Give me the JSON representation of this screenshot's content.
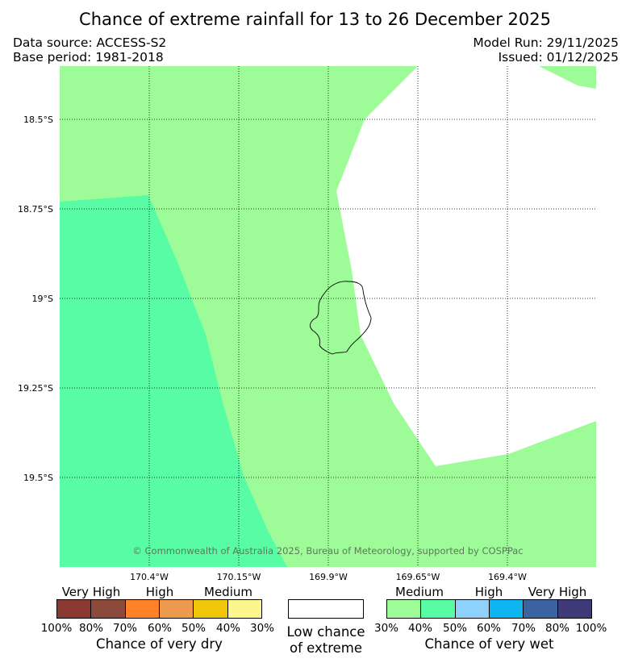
{
  "title": "Chance of extreme rainfall for 13 to 26 December 2025",
  "meta": {
    "data_source": "Data source: ACCESS-S2",
    "base_period": "Base period: 1981-2018",
    "model_run": "Model Run: 29/11/2025",
    "issued": "Issued: 01/12/2025"
  },
  "map": {
    "lat_labels": [
      "18.5°S",
      "18.75°S",
      "19°S",
      "19.25°S",
      "19.5°S"
    ],
    "lon_labels": [
      "170.4°W",
      "170.15°W",
      "169.9°W",
      "169.65°W",
      "169.4°W"
    ],
    "copyright": "© Commonwealth of Australia 2025, Bureau of Meteorology, supported by COSPPac",
    "colors": {
      "medium_wet": "#9efc98",
      "medium_wet_40": "#57fca5",
      "background": "#ffffff"
    }
  },
  "legend": {
    "dry": {
      "categories": [
        "Very High",
        "High",
        "Medium"
      ],
      "colors": [
        "#8b3a33",
        "#8c4a3c",
        "#ff8228",
        "#ee9a4e",
        "#f0c60a",
        "#fdf68e"
      ],
      "percents": [
        "100%",
        "80%",
        "70%",
        "60%",
        "50%",
        "40%",
        "30%"
      ],
      "title": "Chance of very dry"
    },
    "neutral": {
      "color": "#ffffff",
      "line1": "Low chance",
      "line2": "of extreme"
    },
    "wet": {
      "categories": [
        "Medium",
        "High",
        "Very High"
      ],
      "colors": [
        "#9efc98",
        "#57fca5",
        "#8fd1fd",
        "#0db4f0",
        "#3a63a0",
        "#3f3a78"
      ],
      "percents": [
        "30%",
        "40%",
        "50%",
        "60%",
        "70%",
        "80%",
        "100%"
      ],
      "title": "Chance of very wet"
    }
  }
}
